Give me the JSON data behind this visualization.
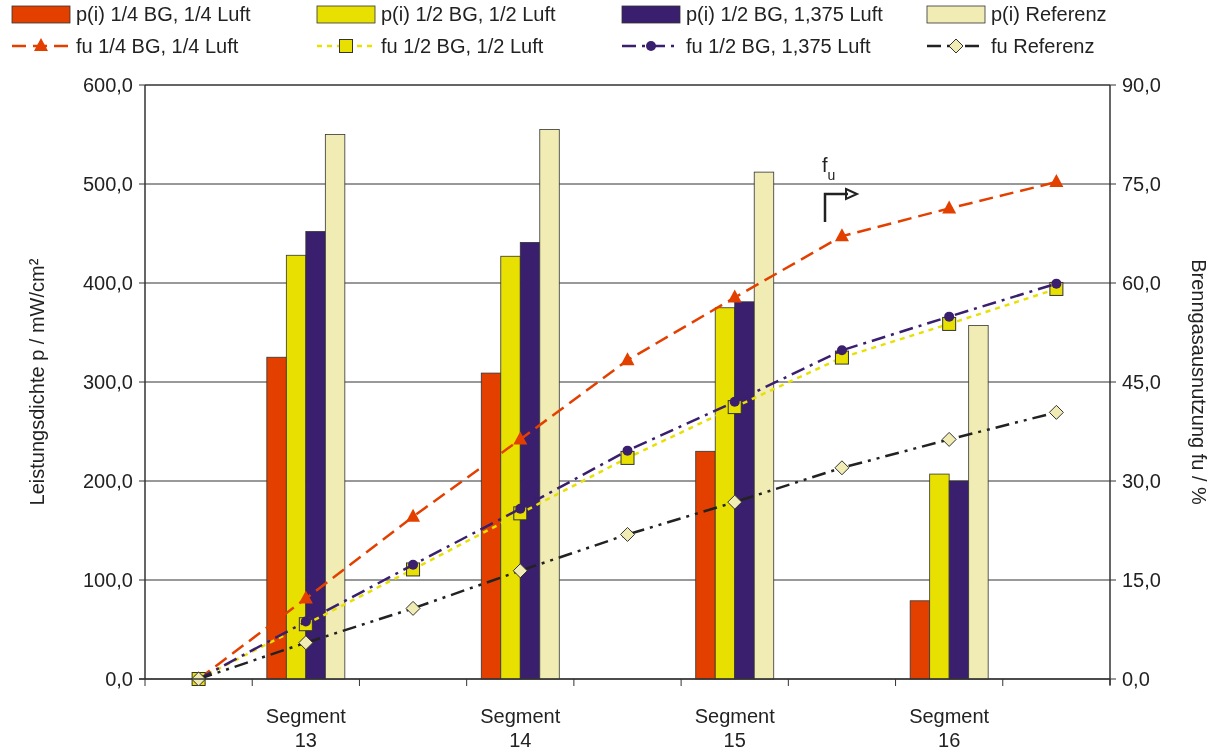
{
  "chart_data": {
    "type": "bar",
    "ylabel": "Leistungsdichte p / mW/cm²",
    "y2label": "Brenngasausnutzung fu / %",
    "categories": [
      null,
      "Segment 13",
      null,
      "Segment 14",
      null,
      "Segment 15",
      null,
      "Segment 16",
      null
    ],
    "ylim": [
      0,
      600
    ],
    "yticks": [
      {
        "value": 0,
        "label": "0,0"
      },
      {
        "value": 100,
        "label": "100,0"
      },
      {
        "value": 200,
        "label": "200,0"
      },
      {
        "value": 300,
        "label": "300,0"
      },
      {
        "value": 400,
        "label": "400,0"
      },
      {
        "value": 500,
        "label": "500,0"
      },
      {
        "value": 600,
        "label": "600,0"
      }
    ],
    "y2lim": [
      0,
      90
    ],
    "y2ticks": [
      {
        "value": 0,
        "label": "0,0"
      },
      {
        "value": 15,
        "label": "15,0"
      },
      {
        "value": 30,
        "label": "30,0"
      },
      {
        "value": 45,
        "label": "45,0"
      },
      {
        "value": 60,
        "label": "60,0"
      },
      {
        "value": 75,
        "label": "75,0"
      },
      {
        "value": 90,
        "label": "90,0"
      }
    ],
    "grid": "y",
    "legend": "top",
    "annotations": [
      "f$_{u}$"
    ],
    "series": [
      {
        "name": "p(i) 1/4 BG, 1/4 Luft",
        "color": "#e34000",
        "values": [
          null,
          325,
          null,
          309,
          null,
          230,
          null,
          79,
          null
        ]
      },
      {
        "name": "p(i) 1/2 BG, 1/2 Luft",
        "color": "#e8e000",
        "values": [
          null,
          428,
          null,
          427,
          null,
          375,
          null,
          207,
          null
        ]
      },
      {
        "name": "p(i) 1/2 BG, 1,375 Luft",
        "color": "#3a1f6e",
        "values": [
          null,
          452,
          null,
          441,
          null,
          381,
          null,
          200,
          null
        ]
      },
      {
        "name": "p(i) Referenz",
        "color": "#f0ecb4",
        "values": [
          null,
          550,
          null,
          555,
          null,
          512,
          null,
          357,
          null
        ]
      },
      {
        "type": "line",
        "axis": "y2",
        "name": "fu 1/4 BG, 1/4 Luft",
        "color": "#e34000",
        "marker": "triangle",
        "line_style": "dashed",
        "values": [
          0,
          12.2,
          24.6,
          36.3,
          48.3,
          57.8,
          67.1,
          71.3,
          75.3
        ]
      },
      {
        "type": "line",
        "axis": "y2",
        "name": "fu 1/2 BG, 1/2 Luft",
        "color": "#e8e000",
        "marker": "square",
        "line_style": "dotted",
        "values": [
          0,
          8.3,
          16.6,
          25.1,
          33.5,
          41.2,
          48.7,
          53.8,
          59.1
        ]
      },
      {
        "type": "line",
        "axis": "y2",
        "name": "fu 1/2 BG, 1,375 Luft",
        "color": "#3a1f6e",
        "marker": "circle",
        "line_style": "dashdot",
        "values": [
          0,
          8.7,
          17.3,
          25.8,
          34.6,
          42.0,
          49.8,
          54.9,
          59.9
        ]
      },
      {
        "type": "line",
        "axis": "y2",
        "name": "fu Referenz",
        "color": "#222222",
        "marker": "diamond",
        "line_style": "dashdotdot",
        "colors": [
          "#f0ecb4",
          "#f0ecb4",
          "#f0ecb4",
          "#f0ecb4",
          "#f0ecb4",
          "#f0ecb4",
          "#f0ecb4",
          "#f0ecb4",
          "#f0ecb4"
        ],
        "values": [
          0,
          5.5,
          10.7,
          16.4,
          21.9,
          26.8,
          32.0,
          36.3,
          40.4
        ]
      }
    ]
  }
}
